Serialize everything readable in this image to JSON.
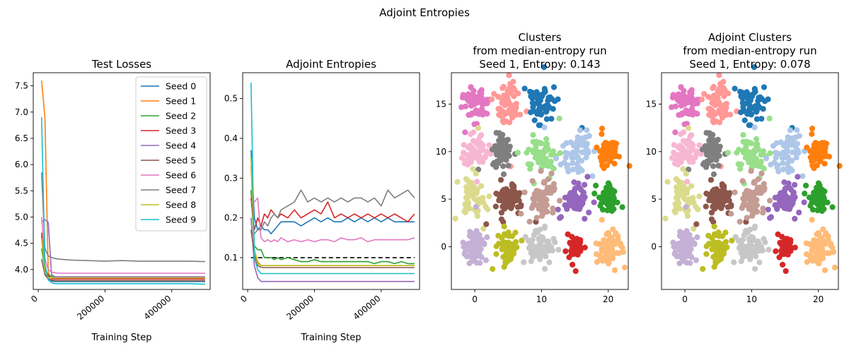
{
  "suptitle": "Adjoint Entropies",
  "colors": {
    "tab10": [
      "#1f77b4",
      "#ff7f0e",
      "#2ca02c",
      "#d62728",
      "#9467bd",
      "#8c564b",
      "#e377c2",
      "#7f7f7f",
      "#bcbd22",
      "#17becf"
    ],
    "tab20": [
      "#1f77b4",
      "#aec7e8",
      "#ff7f0e",
      "#ffbb78",
      "#2ca02c",
      "#98df8a",
      "#d62728",
      "#ff9896",
      "#9467bd",
      "#c5b0d5",
      "#8c564b",
      "#c49c94",
      "#e377c2",
      "#f7b6d2",
      "#7f7f7f",
      "#c7c7c7",
      "#bcbd22",
      "#dbdb8d",
      "#17becf",
      "#9edae5"
    ],
    "reference_line": "#000000"
  },
  "chart_data": [
    {
      "id": "losses",
      "type": "line",
      "title": "Test Losses",
      "xlabel": "Training Step",
      "ylabel": "",
      "xlim": [
        -15000,
        515000
      ],
      "ylim": [
        3.62,
        7.75
      ],
      "xticks": [
        0,
        200000,
        400000
      ],
      "yticks": [
        4.0,
        4.5,
        5.0,
        5.5,
        6.0,
        6.5,
        7.0,
        7.5
      ],
      "ytick_labels": [
        "4.0",
        "4.5",
        "5.0",
        "5.5",
        "6.0",
        "6.5",
        "7.0",
        "7.5"
      ],
      "legend": "top-right",
      "x": [
        10000,
        20000,
        30000,
        40000,
        50000,
        60000,
        100000,
        150000,
        200000,
        250000,
        300000,
        350000,
        400000,
        450000,
        500000
      ],
      "series": [
        {
          "name": "Seed 0",
          "values": [
            4.64,
            3.95,
            3.83,
            3.78,
            3.77,
            3.77,
            3.77,
            3.77,
            3.77,
            3.77,
            3.77,
            3.77,
            3.77,
            3.77,
            3.77
          ]
        },
        {
          "name": "Seed 1",
          "values": [
            7.6,
            6.9,
            3.95,
            3.8,
            3.79,
            3.79,
            3.79,
            3.79,
            3.79,
            3.79,
            3.79,
            3.79,
            3.79,
            3.79,
            3.79
          ]
        },
        {
          "name": "Seed 2",
          "values": [
            4.4,
            4.0,
            3.9,
            3.87,
            3.86,
            3.86,
            3.86,
            3.86,
            3.86,
            3.86,
            3.86,
            3.86,
            3.86,
            3.86,
            3.86
          ]
        },
        {
          "name": "Seed 3",
          "values": [
            4.7,
            4.0,
            3.88,
            3.83,
            3.82,
            3.82,
            3.82,
            3.82,
            3.82,
            3.82,
            3.82,
            3.82,
            3.82,
            3.82,
            3.82
          ]
        },
        {
          "name": "Seed 4",
          "values": [
            4.9,
            4.95,
            4.9,
            3.9,
            3.86,
            3.86,
            3.86,
            3.86,
            3.86,
            3.86,
            3.86,
            3.86,
            3.86,
            3.86,
            3.86
          ]
        },
        {
          "name": "Seed 5",
          "values": [
            4.2,
            3.9,
            3.82,
            3.8,
            3.79,
            3.79,
            3.79,
            3.79,
            3.79,
            3.79,
            3.79,
            3.79,
            3.79,
            3.79,
            3.79
          ]
        },
        {
          "name": "Seed 6",
          "values": [
            5.0,
            4.2,
            4.0,
            3.95,
            3.94,
            3.93,
            3.93,
            3.93,
            3.93,
            3.93,
            3.93,
            3.93,
            3.93,
            3.93,
            3.93
          ]
        },
        {
          "name": "Seed 7",
          "values": [
            5.85,
            4.4,
            4.26,
            4.23,
            4.21,
            4.2,
            4.18,
            4.17,
            4.16,
            4.17,
            4.16,
            4.16,
            4.16,
            4.16,
            4.15
          ]
        },
        {
          "name": "Seed 8",
          "values": [
            4.6,
            3.95,
            3.85,
            3.84,
            3.84,
            3.84,
            3.84,
            3.84,
            3.84,
            3.84,
            3.84,
            3.84,
            3.84,
            3.84,
            3.84
          ]
        },
        {
          "name": "Seed 9",
          "values": [
            6.9,
            4.1,
            3.8,
            3.75,
            3.73,
            3.73,
            3.73,
            3.73,
            3.73,
            3.73,
            3.73,
            3.73,
            3.73,
            3.73,
            3.72
          ]
        }
      ]
    },
    {
      "id": "entropies",
      "type": "line",
      "title": "Adjoint Entropies",
      "xlabel": "Training Step",
      "ylabel": "",
      "xlim": [
        -15000,
        515000
      ],
      "ylim": [
        0.02,
        0.565
      ],
      "xticks": [
        0,
        200000,
        400000
      ],
      "yticks": [
        0.1,
        0.2,
        0.3,
        0.4,
        0.5
      ],
      "ytick_labels": [
        "0.1",
        "0.2",
        "0.3",
        "0.4",
        "0.5"
      ],
      "reference_line": {
        "y": 0.1,
        "style": "dashed"
      },
      "x": [
        10000,
        20000,
        30000,
        40000,
        50000,
        60000,
        70000,
        80000,
        90000,
        100000,
        120000,
        140000,
        160000,
        180000,
        200000,
        220000,
        240000,
        260000,
        280000,
        300000,
        320000,
        340000,
        360000,
        380000,
        400000,
        420000,
        440000,
        460000,
        480000,
        500000
      ],
      "series": [
        {
          "name": "Seed 0",
          "values": [
            0.37,
            0.2,
            0.17,
            0.18,
            0.17,
            0.17,
            0.16,
            0.17,
            0.18,
            0.19,
            0.19,
            0.19,
            0.18,
            0.19,
            0.2,
            0.19,
            0.2,
            0.19,
            0.19,
            0.2,
            0.19,
            0.2,
            0.19,
            0.2,
            0.19,
            0.2,
            0.19,
            0.19,
            0.19,
            0.19
          ]
        },
        {
          "name": "Seed 1",
          "values": [
            0.33,
            0.12,
            0.09,
            0.08,
            0.08,
            0.08,
            0.08,
            0.08,
            0.08,
            0.08,
            0.08,
            0.08,
            0.08,
            0.08,
            0.08,
            0.08,
            0.08,
            0.08,
            0.08,
            0.08,
            0.08,
            0.08,
            0.08,
            0.08,
            0.08,
            0.08,
            0.08,
            0.08,
            0.08,
            0.08
          ]
        },
        {
          "name": "Seed 2",
          "values": [
            0.27,
            0.13,
            0.12,
            0.12,
            0.1,
            0.1,
            0.1,
            0.095,
            0.1,
            0.095,
            0.1,
            0.095,
            0.09,
            0.09,
            0.095,
            0.09,
            0.09,
            0.09,
            0.09,
            0.09,
            0.09,
            0.09,
            0.09,
            0.085,
            0.09,
            0.09,
            0.085,
            0.09,
            0.085,
            0.085
          ]
        },
        {
          "name": "Seed 3",
          "values": [
            0.25,
            0.17,
            0.2,
            0.18,
            0.21,
            0.2,
            0.22,
            0.21,
            0.2,
            0.21,
            0.2,
            0.22,
            0.2,
            0.21,
            0.22,
            0.21,
            0.24,
            0.2,
            0.21,
            0.2,
            0.21,
            0.2,
            0.21,
            0.2,
            0.21,
            0.2,
            0.21,
            0.2,
            0.19,
            0.21
          ]
        },
        {
          "name": "Seed 4",
          "values": [
            0.2,
            0.08,
            0.05,
            0.04,
            0.04,
            0.04,
            0.04,
            0.04,
            0.04,
            0.04,
            0.04,
            0.04,
            0.04,
            0.04,
            0.04,
            0.04,
            0.04,
            0.04,
            0.04,
            0.04,
            0.04,
            0.04,
            0.04,
            0.04,
            0.04,
            0.04,
            0.04,
            0.04,
            0.04,
            0.04
          ]
        },
        {
          "name": "Seed 5",
          "values": [
            0.17,
            0.11,
            0.08,
            0.076,
            0.075,
            0.075,
            0.075,
            0.075,
            0.075,
            0.075,
            0.075,
            0.075,
            0.075,
            0.075,
            0.075,
            0.075,
            0.075,
            0.075,
            0.075,
            0.075,
            0.075,
            0.075,
            0.075,
            0.075,
            0.075,
            0.075,
            0.075,
            0.075,
            0.075,
            0.075
          ]
        },
        {
          "name": "Seed 6",
          "values": [
            0.24,
            0.24,
            0.25,
            0.15,
            0.14,
            0.145,
            0.14,
            0.145,
            0.14,
            0.15,
            0.14,
            0.145,
            0.14,
            0.145,
            0.14,
            0.145,
            0.145,
            0.14,
            0.15,
            0.145,
            0.145,
            0.15,
            0.14,
            0.145,
            0.145,
            0.145,
            0.145,
            0.145,
            0.145,
            0.15
          ]
        },
        {
          "name": "Seed 7",
          "values": [
            0.16,
            0.16,
            0.17,
            0.17,
            0.19,
            0.18,
            0.2,
            0.21,
            0.2,
            0.22,
            0.23,
            0.24,
            0.27,
            0.24,
            0.25,
            0.24,
            0.25,
            0.24,
            0.25,
            0.24,
            0.25,
            0.25,
            0.24,
            0.25,
            0.23,
            0.27,
            0.25,
            0.26,
            0.27,
            0.25
          ]
        },
        {
          "name": "Seed 8",
          "values": [
            0.35,
            0.12,
            0.085,
            0.08,
            0.08,
            0.08,
            0.08,
            0.08,
            0.08,
            0.08,
            0.08,
            0.08,
            0.08,
            0.08,
            0.08,
            0.08,
            0.08,
            0.08,
            0.08,
            0.08,
            0.08,
            0.08,
            0.08,
            0.08,
            0.08,
            0.08,
            0.08,
            0.08,
            0.08,
            0.08
          ]
        },
        {
          "name": "Seed 9",
          "values": [
            0.54,
            0.1,
            0.07,
            0.06,
            0.06,
            0.06,
            0.06,
            0.06,
            0.06,
            0.06,
            0.06,
            0.06,
            0.06,
            0.06,
            0.06,
            0.06,
            0.06,
            0.06,
            0.06,
            0.06,
            0.06,
            0.06,
            0.06,
            0.06,
            0.06,
            0.06,
            0.06,
            0.06,
            0.06,
            0.06
          ]
        }
      ]
    },
    {
      "id": "clusters",
      "type": "scatter",
      "title": "Clusters\nfrom median-entropy run\nSeed 1, Entropy: 0.143",
      "xlim": [
        -3.5,
        23.0
      ],
      "ylim": [
        -4.5,
        18.3
      ],
      "xticks": [
        0,
        10,
        20
      ],
      "yticks": [
        0,
        5,
        10,
        15
      ],
      "clusters": [
        {
          "center": [
            0,
            15
          ],
          "color_index": 12,
          "spread": 1.0
        },
        {
          "center": [
            5,
            15
          ],
          "color_index": 7,
          "spread": 1.0
        },
        {
          "center": [
            10,
            15
          ],
          "color_index": 0,
          "spread": 1.0
        },
        {
          "center": [
            0,
            10
          ],
          "color_index": 13,
          "spread": 1.0
        },
        {
          "center": [
            4,
            10
          ],
          "color_index": 14,
          "spread": 0.8
        },
        {
          "center": [
            10,
            9.5
          ],
          "color_index": 5,
          "spread": 1.1
        },
        {
          "center": [
            15,
            10
          ],
          "color_index": 1,
          "spread": 1.1
        },
        {
          "center": [
            20,
            10
          ],
          "color_index": 2,
          "spread": 0.8
        },
        {
          "center": [
            0,
            5
          ],
          "color_index": 17,
          "spread": 1.1
        },
        {
          "center": [
            5,
            5
          ],
          "color_index": 10,
          "spread": 1.0
        },
        {
          "center": [
            10,
            5
          ],
          "color_index": 11,
          "spread": 1.1
        },
        {
          "center": [
            15,
            5
          ],
          "color_index": 8,
          "spread": 0.9
        },
        {
          "center": [
            20,
            5
          ],
          "color_index": 4,
          "spread": 0.7
        },
        {
          "center": [
            0,
            0
          ],
          "color_index": 9,
          "spread": 0.9
        },
        {
          "center": [
            5,
            0
          ],
          "color_index": 16,
          "spread": 0.9
        },
        {
          "center": [
            10,
            0
          ],
          "color_index": 15,
          "spread": 1.0
        },
        {
          "center": [
            15,
            0
          ],
          "color_index": 6,
          "spread": 0.6
        },
        {
          "center": [
            20,
            0
          ],
          "color_index": 3,
          "spread": 1.0
        }
      ]
    },
    {
      "id": "adjoint_clusters",
      "type": "scatter",
      "title": "Adjoint Clusters\nfrom median-entropy run\nSeed 1, Entropy: 0.078",
      "xlim": [
        -3.5,
        23.0
      ],
      "ylim": [
        -4.5,
        18.3
      ],
      "xticks": [
        0,
        10,
        20
      ],
      "yticks": [
        0,
        5,
        10,
        15
      ],
      "clusters": [
        {
          "center": [
            0,
            15
          ],
          "color_index": 12,
          "spread": 1.0
        },
        {
          "center": [
            5,
            15
          ],
          "color_index": 7,
          "spread": 1.0
        },
        {
          "center": [
            10,
            15
          ],
          "color_index": 0,
          "spread": 1.0
        },
        {
          "center": [
            0,
            10
          ],
          "color_index": 13,
          "spread": 1.0
        },
        {
          "center": [
            4,
            10
          ],
          "color_index": 14,
          "spread": 0.8
        },
        {
          "center": [
            10,
            9.5
          ],
          "color_index": 5,
          "spread": 1.1
        },
        {
          "center": [
            15,
            10
          ],
          "color_index": 1,
          "spread": 1.1
        },
        {
          "center": [
            20,
            10
          ],
          "color_index": 2,
          "spread": 0.8
        },
        {
          "center": [
            0,
            5
          ],
          "color_index": 17,
          "spread": 1.1
        },
        {
          "center": [
            5,
            5
          ],
          "color_index": 10,
          "spread": 1.0
        },
        {
          "center": [
            10,
            5
          ],
          "color_index": 11,
          "spread": 1.1
        },
        {
          "center": [
            15,
            5
          ],
          "color_index": 8,
          "spread": 0.9
        },
        {
          "center": [
            20,
            5
          ],
          "color_index": 4,
          "spread": 0.7
        },
        {
          "center": [
            0,
            0
          ],
          "color_index": 9,
          "spread": 0.9
        },
        {
          "center": [
            5,
            0
          ],
          "color_index": 16,
          "spread": 0.9
        },
        {
          "center": [
            10,
            0
          ],
          "color_index": 15,
          "spread": 1.0
        },
        {
          "center": [
            15,
            0
          ],
          "color_index": 6,
          "spread": 0.6
        },
        {
          "center": [
            20,
            0
          ],
          "color_index": 3,
          "spread": 1.0
        }
      ]
    }
  ]
}
